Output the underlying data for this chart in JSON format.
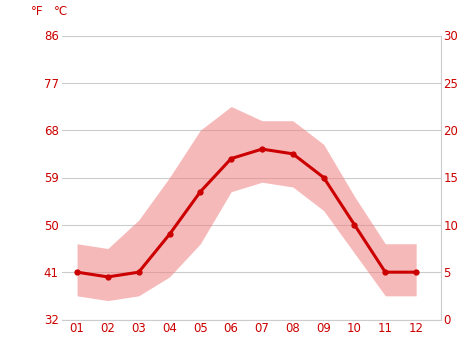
{
  "months": [
    1,
    2,
    3,
    4,
    5,
    6,
    7,
    8,
    9,
    10,
    11,
    12
  ],
  "month_labels": [
    "01",
    "02",
    "03",
    "04",
    "05",
    "06",
    "07",
    "08",
    "09",
    "10",
    "11",
    "12"
  ],
  "avg_temp_c": [
    5.0,
    4.5,
    5.0,
    9.0,
    13.5,
    17.0,
    18.0,
    17.5,
    15.0,
    10.0,
    5.0,
    5.0
  ],
  "max_temp_c": [
    8.0,
    7.5,
    10.5,
    15.0,
    20.0,
    22.5,
    21.0,
    21.0,
    18.5,
    13.0,
    8.0,
    8.0
  ],
  "min_temp_c": [
    2.5,
    2.0,
    2.5,
    4.5,
    8.0,
    13.5,
    14.5,
    14.0,
    11.5,
    7.0,
    2.5,
    2.5
  ],
  "line_color": "#cc0000",
  "band_color": "#f08080",
  "band_alpha": 0.55,
  "background_color": "#ffffff",
  "grid_color": "#cccccc",
  "tick_color": "#cc0000",
  "ylim_c": [
    0,
    30
  ],
  "yticks_c": [
    0,
    5,
    10,
    15,
    20,
    25,
    30
  ],
  "yticks_f": [
    32,
    41,
    50,
    59,
    68,
    77,
    86
  ],
  "tick_fontsize": 8.5,
  "header_fontsize": 8.5,
  "line_width": 2.2,
  "marker": "o",
  "marker_size": 3.5,
  "xlim": [
    0.5,
    12.8
  ]
}
